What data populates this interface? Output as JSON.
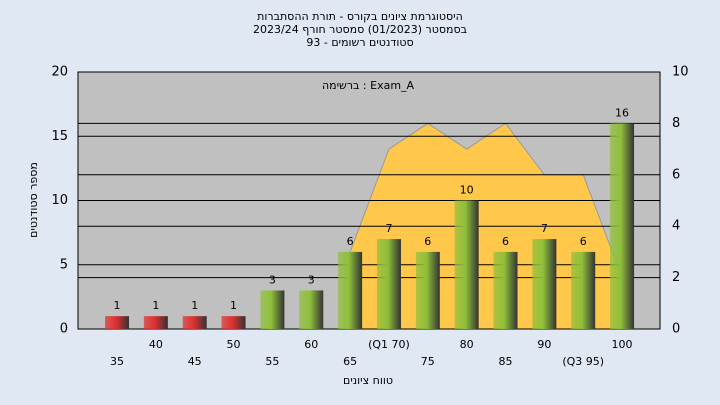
{
  "chart_data": {
    "type": "bar",
    "title": [
      "היסטוגרמת ציונים בקורס - תורת ההסתברות",
      "בסמסטר  (01/2023)  סמסטר חורף 2023/24",
      "סטודנטים רשומים - 93"
    ],
    "annotation": "ברשימה : Exam_A",
    "x_label": "טווח ציונים",
    "y_label": "מספר סטודנטים",
    "categories": [
      "35",
      "40",
      "45",
      "50",
      "55",
      "60",
      "65",
      "(Q1 70)",
      "75",
      "80",
      "85",
      "90",
      "(Q3 95)",
      "100"
    ],
    "series": [
      {
        "type": "bar",
        "colors": [
          "#e03030",
          "#e03030",
          "#e03030",
          "#e03030",
          "#8fbf3a",
          "#8fbf3a",
          "#8fbf3a",
          "#8fbf3a",
          "#8fbf3a",
          "#8fbf3a",
          "#8fbf3a",
          "#8fbf3a",
          "#8fbf3a",
          "#8fbf3a"
        ],
        "values": [
          1,
          1,
          1,
          1,
          3,
          3,
          6,
          7,
          6,
          10,
          6,
          7,
          6,
          16
        ]
      },
      {
        "type": "area",
        "axis": "y2",
        "color": "#ffc84a",
        "values": [
          null,
          null,
          null,
          null,
          null,
          null,
          3,
          7,
          8,
          7,
          8,
          6,
          6,
          2
        ]
      }
    ],
    "ylim": [
      0,
      20
    ],
    "yticks": [
      0,
      5,
      10,
      15,
      20
    ],
    "y2lim": [
      0,
      10
    ],
    "y2ticks": [
      0,
      2,
      4,
      6,
      8,
      10
    ],
    "grid": true
  }
}
